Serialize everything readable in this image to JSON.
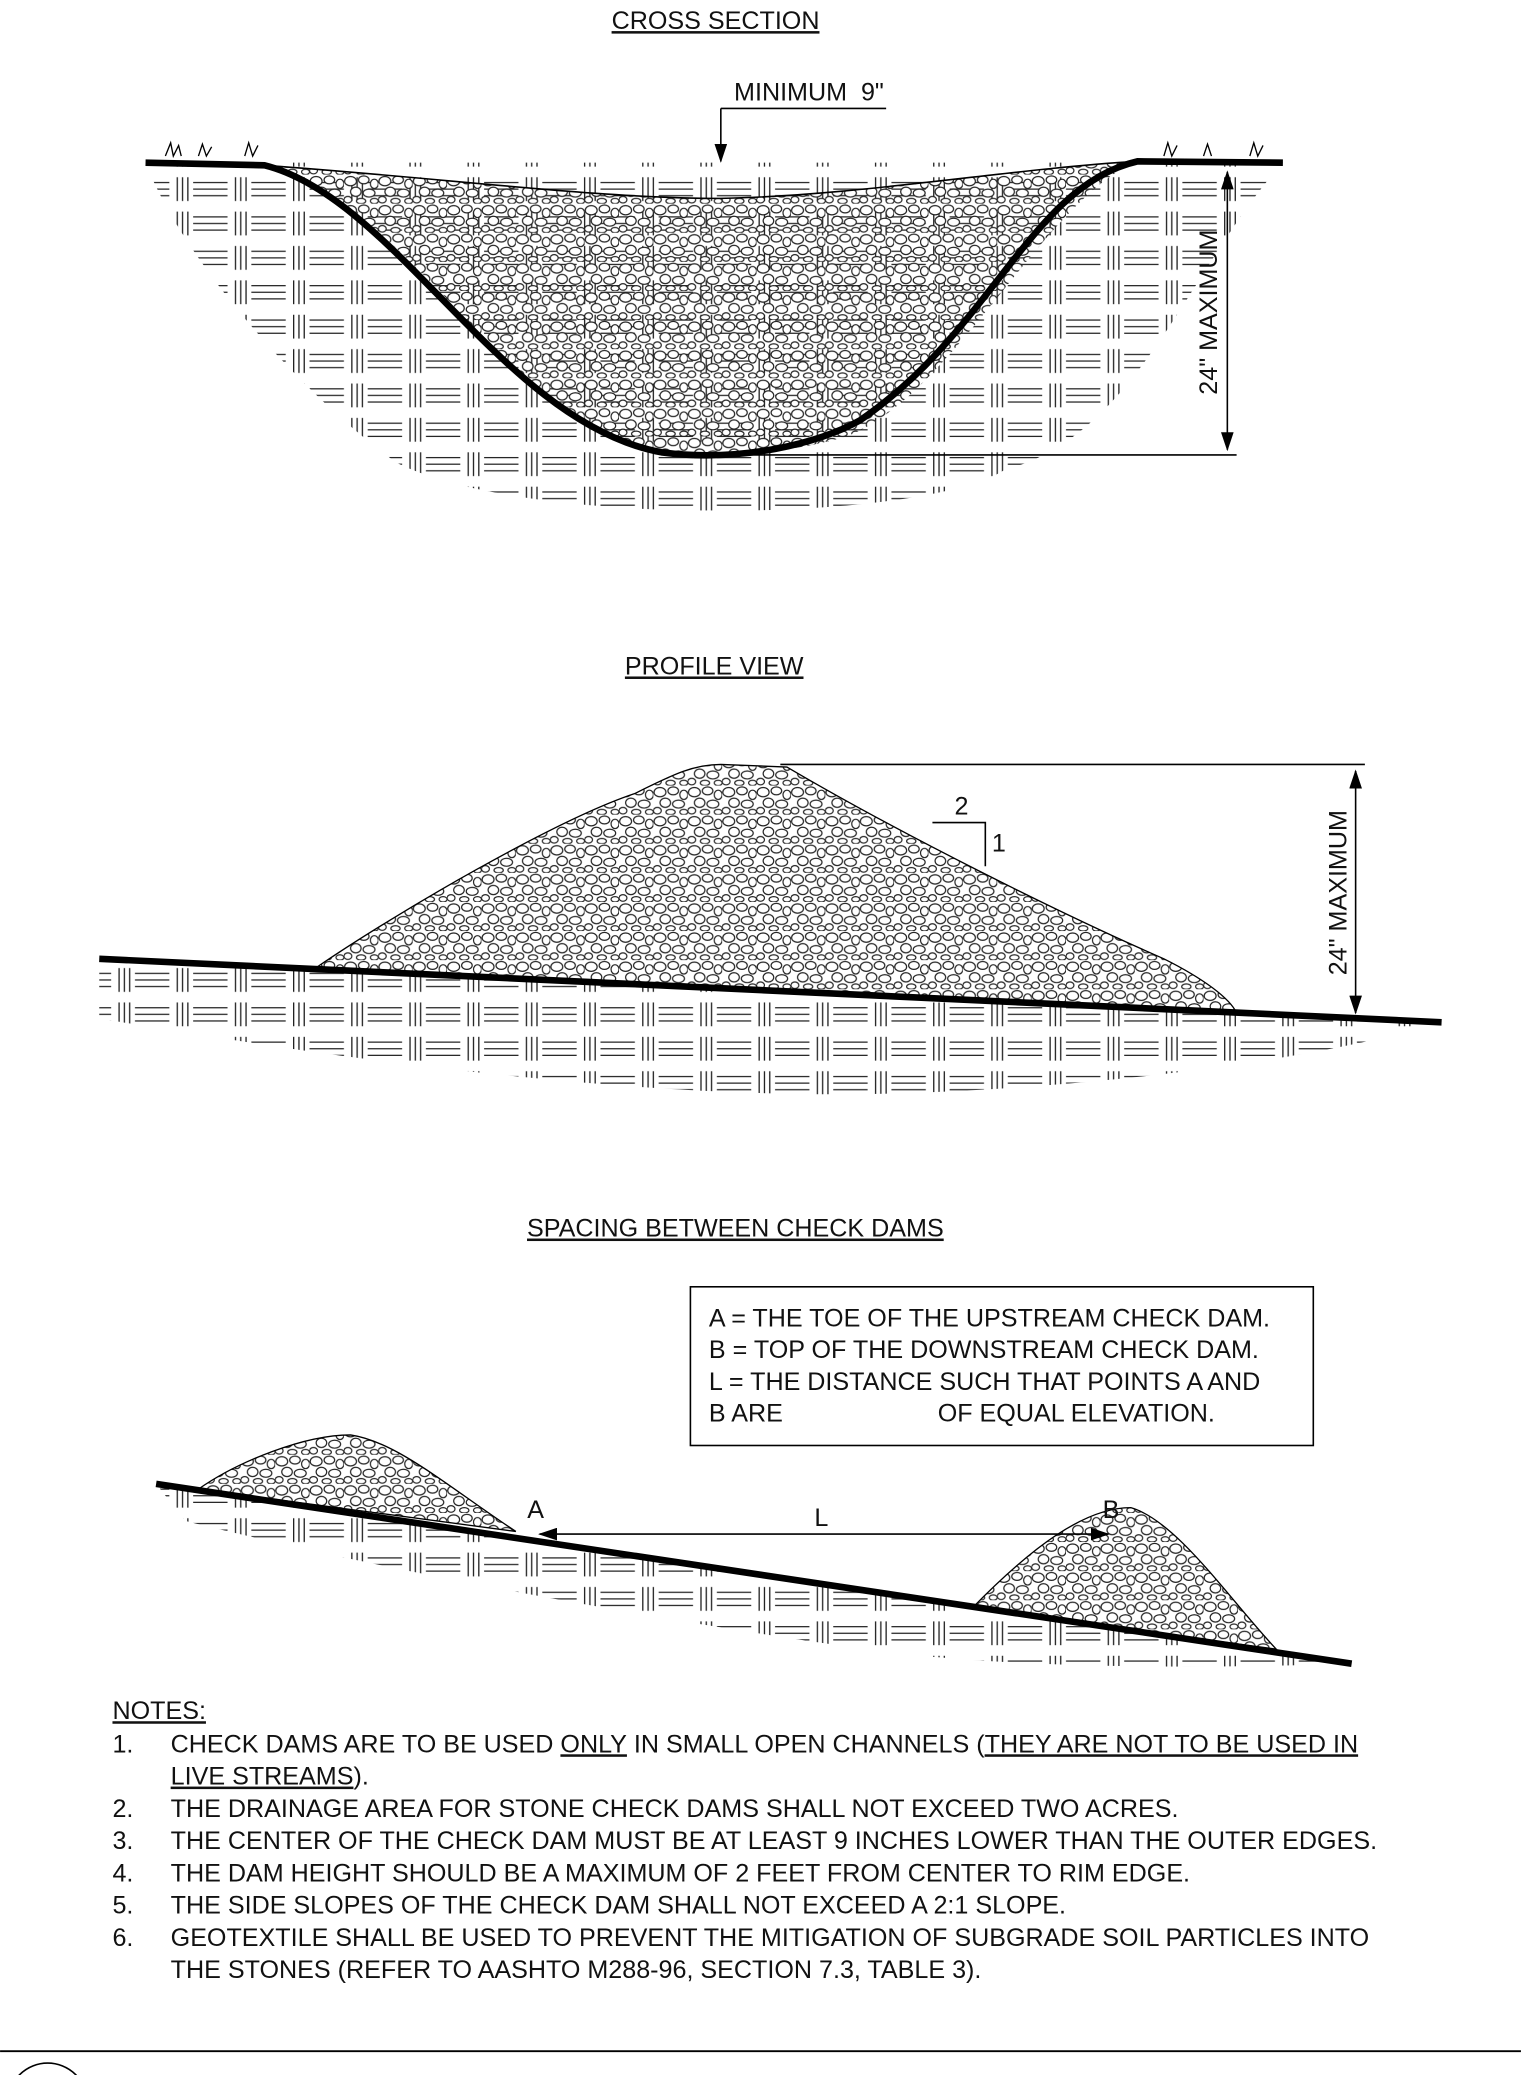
{
  "cross_section": {
    "title": "CROSS SECTION",
    "min_label": "MINIMUM  9\"",
    "max_label": "24\" MAXIMUM"
  },
  "profile": {
    "title": "PROFILE VIEW",
    "slope_run": "2",
    "slope_rise": "1",
    "max_label": "24\" MAXIMUM"
  },
  "spacing": {
    "title": "SPACING BETWEEN CHECK DAMS",
    "legend": [
      "A = THE TOE OF THE UPSTREAM CHECK DAM.",
      "B = TOP OF THE DOWNSTREAM CHECK DAM.",
      "L = THE DISTANCE SUCH THAT POINTS A AND",
      "B ARE",
      "OF EQUAL ELEVATION."
    ],
    "point_a": "A",
    "distance": "L",
    "point_b": "B"
  },
  "notes": {
    "heading": "NOTES:",
    "items": [
      {
        "number": "1.",
        "lines": [
          [
            {
              "text": "CHECK DAMS ARE TO BE USED ",
              "underline": false
            },
            {
              "text": "ONLY",
              "underline": true
            },
            {
              "text": " IN SMALL OPEN CHANNELS (",
              "underline": false
            },
            {
              "text": "THEY ARE NOT TO BE USED IN",
              "underline": true
            }
          ],
          [
            {
              "text": "LIVE STREAMS",
              "underline": true
            },
            {
              "text": ").",
              "underline": false
            }
          ]
        ]
      },
      {
        "number": "2.",
        "lines": [
          [
            {
              "text": "THE DRAINAGE AREA FOR STONE CHECK DAMS SHALL NOT EXCEED TWO ACRES.",
              "underline": false
            }
          ]
        ]
      },
      {
        "number": "3.",
        "lines": [
          [
            {
              "text": "THE CENTER OF THE CHECK DAM MUST BE AT LEAST 9 INCHES LOWER THAN THE OUTER EDGES.",
              "underline": false
            }
          ]
        ]
      },
      {
        "number": "4.",
        "lines": [
          [
            {
              "text": "THE DAM HEIGHT SHOULD BE A MAXIMUM OF 2 FEET FROM CENTER TO RIM EDGE.",
              "underline": false
            }
          ]
        ]
      },
      {
        "number": "5.",
        "lines": [
          [
            {
              "text": "THE SIDE SLOPES OF THE CHECK DAM SHALL NOT EXCEED A 2:1 SLOPE.",
              "underline": false
            }
          ]
        ]
      },
      {
        "number": "6.",
        "lines": [
          [
            {
              "text": "GEOTEXTILE SHALL BE USED TO PREVENT THE MITIGATION OF SUBGRADE SOIL PARTICLES INTO",
              "underline": false
            }
          ],
          [
            {
              "text": "THE STONES (REFER TO AASHTO M288-96, SECTION 7.3, TABLE 3).",
              "underline": false
            }
          ]
        ]
      }
    ]
  }
}
